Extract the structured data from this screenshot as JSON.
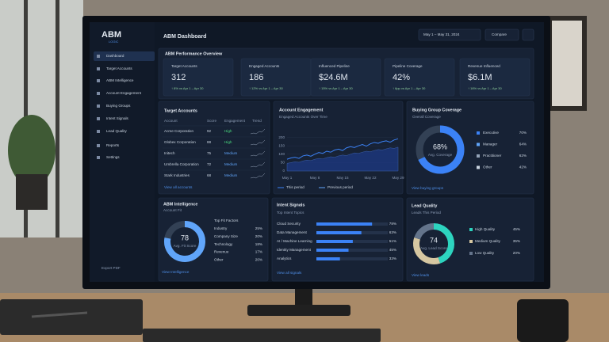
{
  "sidebar": {
    "logo": "ABM",
    "logo_sub": "LOGIC",
    "menu": [
      "Dashboard",
      "Target Accounts",
      "ABM Intelligence",
      "Account Engagement",
      "Buying Groups",
      "Intent Signals",
      "Lead Quality",
      "Reports",
      "Settings"
    ],
    "export": "Export PDF"
  },
  "header": {
    "title": "ABM Dashboard",
    "date_range": "May 1 – May 31, 2024",
    "compare": "Compare"
  },
  "performance": {
    "title": "ABM Performance Overview",
    "kpis": [
      {
        "label": "Target Accounts",
        "value": "312",
        "change": "↑ 8% vs Apr 1 – Apr 30"
      },
      {
        "label": "Engaged Accounts",
        "value": "186",
        "change": "↑ 12% vs Apr 1 – Apr 30"
      },
      {
        "label": "Influenced Pipeline",
        "value": "$24.6M",
        "change": "↑ 15% vs Apr 1 – Apr 30"
      },
      {
        "label": "Pipeline Coverage",
        "value": "42%",
        "change": "↑ 6pp vs Apr 1 – Apr 30"
      },
      {
        "label": "Revenue Influenced",
        "value": "$6.1M",
        "change": "↑ 16% vs Apr 1 – Apr 30"
      }
    ]
  },
  "target_accounts": {
    "title": "Target Accounts",
    "columns": [
      "Account",
      "Score",
      "Engagement",
      "Trend"
    ],
    "rows": [
      [
        "Acme Corporation",
        "92",
        "High"
      ],
      [
        "Globex Corporation",
        "88",
        "High"
      ],
      [
        "Initech",
        "75",
        "Medium"
      ],
      [
        "Umbrella Corporation",
        "72",
        "Medium"
      ],
      [
        "Stark Industries",
        "68",
        "Medium"
      ]
    ],
    "link": "View all accounts"
  },
  "account_engagement": {
    "title": "Account Engagement",
    "subtitle": "Engaged Accounts Over Time",
    "chart": {
      "type": "line",
      "categories": [
        "May 1",
        null,
        null,
        null,
        null,
        null,
        null,
        "May 8",
        null,
        null,
        null,
        null,
        null,
        null,
        "May 15",
        null,
        null,
        null,
        null,
        null,
        null,
        "May 22",
        null,
        null,
        null,
        null,
        null,
        null,
        "May 29"
      ],
      "series": [
        {
          "name": "This period",
          "color": "#3b82f6",
          "values": [
            70,
            78,
            82,
            75,
            90,
            95,
            88,
            100,
            110,
            105,
            118,
            112,
            125,
            130,
            122,
            138,
            145,
            140,
            150,
            158,
            148,
            162,
            170,
            165,
            175,
            180,
            172,
            185,
            192
          ]
        },
        {
          "name": "Previous period",
          "color": "#1e3a8a",
          "values": [
            45,
            50,
            55,
            52,
            60,
            65,
            62,
            70,
            75,
            72,
            80,
            85,
            82,
            90,
            95,
            92,
            100,
            108,
            105,
            112,
            118,
            115,
            122,
            128,
            125,
            132,
            138,
            135,
            142
          ]
        }
      ],
      "ylim": [
        0,
        250
      ],
      "yticks": [
        0,
        50,
        100,
        150,
        200
      ]
    }
  },
  "buying_group": {
    "title": "Buying Group Coverage",
    "subtitle": "Overall Coverage",
    "score": 68,
    "score_label": "68%",
    "caption": "Avg. Coverage",
    "legend": [
      {
        "name": "Executive",
        "value": "70%",
        "color": "#3b82f6"
      },
      {
        "name": "Manager",
        "value": "64%",
        "color": "#60a5fa"
      },
      {
        "name": "Practitioner",
        "value": "62%",
        "color": "#94a3b8"
      },
      {
        "name": "Other",
        "value": "42%",
        "color": "#cbd5e1"
      }
    ],
    "link": "View buying groups"
  },
  "abm_intelligence": {
    "title": "ABM Intelligence",
    "subtitle": "Account Fit",
    "score": 78,
    "caption": "Avg. Fit Score",
    "factors_title": "Top Fit Factors",
    "factors": [
      [
        "Industry",
        "25%"
      ],
      [
        "Company Size",
        "20%"
      ],
      [
        "Technology",
        "18%"
      ],
      [
        "Revenue",
        "17%"
      ],
      [
        "Other",
        "20%"
      ]
    ],
    "link": "View Intelligence"
  },
  "intent_signals": {
    "title": "Intent Signals",
    "subtitle": "Top Intent Topics",
    "topics": [
      {
        "name": "Cloud Security",
        "value": 78,
        "label": "78%"
      },
      {
        "name": "Data Management",
        "value": 63,
        "label": "63%"
      },
      {
        "name": "AI / Machine Learning",
        "value": 51,
        "label": "51%"
      },
      {
        "name": "Identity Management",
        "value": 45,
        "label": "45%"
      },
      {
        "name": "Analytics",
        "value": 33,
        "label": "33%"
      }
    ],
    "link": "View all signals"
  },
  "lead_quality": {
    "title": "Lead Quality",
    "subtitle": "Leads This Period",
    "score": 74,
    "caption": "Avg. Lead Score",
    "segments": [
      {
        "name": "High Quality",
        "value": 45,
        "label": "45%",
        "color": "#2dd4bf"
      },
      {
        "name": "Medium Quality",
        "value": 35,
        "label": "35%",
        "color": "#d6c7a1"
      },
      {
        "name": "Low Quality",
        "value": 20,
        "label": "20%",
        "color": "#64748b"
      }
    ],
    "link": "View leads"
  }
}
